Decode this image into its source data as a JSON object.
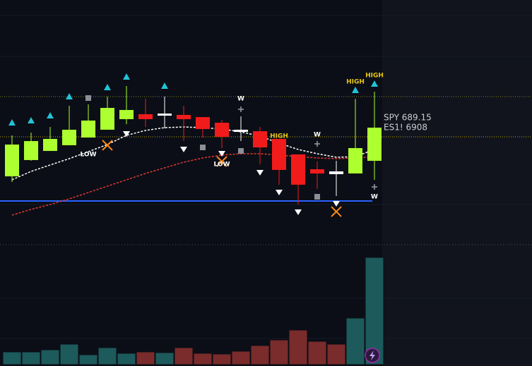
{
  "chart_data": [
    {
      "type": "candlestick",
      "ylim": [
        678,
        703
      ],
      "open": [
        685.14,
        686.79,
        687.71,
        688.29,
        689.07,
        689.86,
        690.93,
        691.43,
        691.29,
        691.36,
        691.14,
        690.57,
        689.64,
        689.71,
        688.93,
        687.36,
        685.86,
        685.36,
        685.43,
        686.71
      ],
      "high": [
        689.29,
        689.57,
        690.14,
        692.29,
        692.43,
        693.21,
        694.29,
        693.0,
        693.21,
        692.29,
        691.14,
        690.86,
        691.21,
        690.14,
        688.93,
        687.36,
        686.64,
        686.71,
        693.0,
        693.71
      ],
      "low": [
        684.57,
        686.71,
        687.71,
        688.29,
        689.07,
        689.86,
        690.43,
        690.14,
        690.0,
        688.71,
        689.07,
        688.0,
        688.71,
        686.36,
        684.29,
        682.29,
        683.86,
        683.14,
        685.43,
        684.79
      ],
      "close": [
        688.36,
        688.71,
        688.93,
        689.86,
        690.79,
        692.07,
        691.86,
        690.93,
        691.5,
        690.93,
        689.93,
        689.14,
        689.86,
        688.07,
        685.79,
        684.29,
        685.43,
        685.64,
        688.0,
        690.07
      ],
      "colors": [
        "#adff2f",
        "#adff2f",
        "#adff2f",
        "#adff2f",
        "#adff2f",
        "#adff2f",
        "#adff2f",
        "#f21b1b",
        "#ffffff",
        "#f21b1b",
        "#f21b1b",
        "#f21b1b",
        "#ffffff",
        "#f21b1b",
        "#f21b1b",
        "#f21b1b",
        "#f21b1b",
        "#ffffff",
        "#adff2f",
        "#adff2f"
      ],
      "series": [
        {
          "color": "#ffffff",
          "values": [
            684.79,
            685.64,
            686.29,
            686.93,
            687.64,
            688.36,
            689.29,
            689.79,
            690.07,
            690.14,
            690.07,
            689.93,
            689.64,
            689.21,
            688.5,
            687.86,
            687.43,
            687.07,
            687.14,
            687.86
          ]
        },
        {
          "color": "#e53935",
          "values": [
            681.21,
            681.79,
            682.29,
            682.86,
            683.5,
            684.14,
            684.79,
            685.43,
            686.0,
            686.57,
            687.0,
            687.29,
            687.43,
            687.43,
            687.29,
            687.14,
            687.0,
            686.93,
            687.0,
            687.14
          ]
        }
      ],
      "levels": [
        {
          "value": 682.64,
          "color": "#2962ff",
          "style": "solid"
        },
        {
          "value": 693.21,
          "color": "#7d7d2a",
          "style": "dotted"
        },
        {
          "value": 689.14,
          "color": "#b8a400",
          "style": "dotted"
        }
      ],
      "markers": [
        {
          "shape": "up",
          "x": 0,
          "y": 690.57
        },
        {
          "shape": "up",
          "x": 1,
          "y": 690.79
        },
        {
          "shape": "up",
          "x": 2,
          "y": 691.29
        },
        {
          "shape": "up",
          "x": 3,
          "y": 693.21
        },
        {
          "shape": "up",
          "x": 5,
          "y": 694.14
        },
        {
          "shape": "up",
          "x": 6,
          "y": 695.21
        },
        {
          "shape": "up",
          "x": 8,
          "y": 694.29
        },
        {
          "shape": "up",
          "x": 18,
          "y": 693.86
        },
        {
          "shape": "up",
          "x": 19,
          "y": 694.5
        },
        {
          "shape": "square",
          "x": 4,
          "y": 693.07
        },
        {
          "shape": "square",
          "x": 10,
          "y": 688.07
        },
        {
          "shape": "square",
          "x": 12,
          "y": 687.71
        },
        {
          "shape": "square",
          "x": 16,
          "y": 683.07
        },
        {
          "shape": "down",
          "x": 6,
          "y": 689.43
        },
        {
          "shape": "down",
          "x": 9,
          "y": 687.86
        },
        {
          "shape": "down",
          "x": 11,
          "y": 687.43
        },
        {
          "shape": "down",
          "x": 13,
          "y": 685.5
        },
        {
          "shape": "down",
          "x": 14,
          "y": 683.5
        },
        {
          "shape": "down",
          "x": 15,
          "y": 681.5
        },
        {
          "shape": "down",
          "x": 17,
          "y": 682.36
        },
        {
          "shape": "cross",
          "x": 5,
          "y": 688.29
        },
        {
          "shape": "cross",
          "x": 11,
          "y": 686.64
        },
        {
          "shape": "cross",
          "x": 17,
          "y": 681.57
        },
        {
          "shape": "plus",
          "x": 12,
          "y": 691.93
        },
        {
          "shape": "plus",
          "x": 16,
          "y": 688.43
        },
        {
          "shape": "plus",
          "x": 19,
          "y": 684.07
        }
      ],
      "annotations": [
        {
          "text": "W",
          "x": 12,
          "y": 693.0,
          "color": "#ffffff"
        },
        {
          "text": "W",
          "x": 16,
          "y": 689.36,
          "color": "#ffffff"
        },
        {
          "text": "W",
          "x": 19,
          "y": 683.07,
          "color": "#ffffff"
        },
        {
          "text": "HIGH",
          "x": 18,
          "y": 694.71,
          "color": "#e6c619"
        },
        {
          "text": "HIGH",
          "x": 19,
          "y": 695.36,
          "color": "#e6c619"
        },
        {
          "text": "HIGH",
          "x": 14,
          "y": 689.21,
          "color": "#e6c619"
        },
        {
          "text": "LOW",
          "x": 4,
          "y": 687.36,
          "color": "#ffffff"
        },
        {
          "text": "LOW",
          "x": 11,
          "y": 686.36,
          "color": "#ffffff"
        }
      ],
      "price_labels": [
        "SPY 689.15",
        "ES1! 6908"
      ]
    },
    {
      "type": "bar",
      "ylim": [
        0,
        160
      ],
      "values": [
        18,
        18,
        21,
        29,
        14,
        24,
        16,
        18,
        17,
        24,
        16,
        15,
        19,
        27,
        35,
        49,
        33,
        29,
        66,
        152
      ],
      "colors": [
        "#1d5a5b",
        "#1d5a5b",
        "#1d5a5b",
        "#1d5a5b",
        "#1d5a5b",
        "#1d5a5b",
        "#1d5a5b",
        "#7a2b2b",
        "#1d5a5b",
        "#7a2b2b",
        "#7a2b2b",
        "#7a2b2b",
        "#7a2b2b",
        "#7a2b2b",
        "#7a2b2b",
        "#7a2b2b",
        "#7a2b2b",
        "#7a2b2b",
        "#1d5a5b",
        "#1d5a5b"
      ]
    }
  ]
}
